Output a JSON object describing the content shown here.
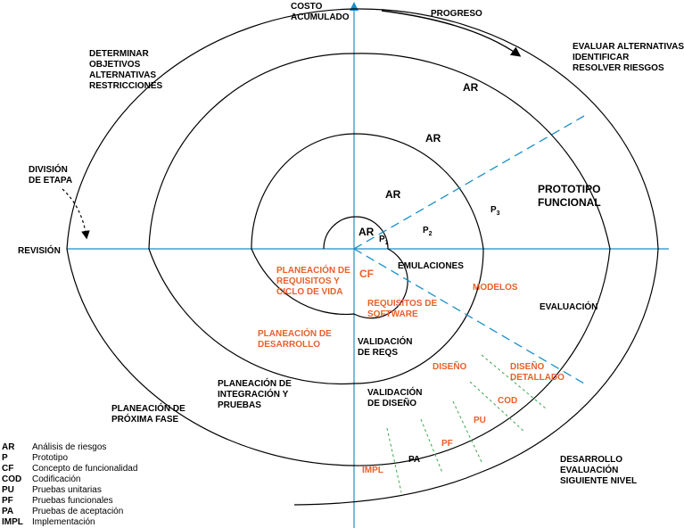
{
  "colors": {
    "axis": "#1a8fc9",
    "orange_text": "#e8602a",
    "green_dash": "#3aa84a",
    "spiral": "#000000"
  },
  "labels": {
    "costo_line1": "COSTO",
    "costo_line2": "ACUMULADO",
    "progreso": "PROGRESO",
    "determinar_1": "DETERMINAR",
    "determinar_2": "OBJETIVOS",
    "determinar_3": "ALTERNATIVAS",
    "determinar_4": "RESTRICCIONES",
    "evaluar_1": "EVALUAR ALTERNATIVAS",
    "evaluar_2": "IDENTIFICAR",
    "evaluar_3": "RESOLVER RIESGOS",
    "division_1": "DIVISIÓN",
    "division_2": "DE ETAPA",
    "revision": "REVISIÓN",
    "ar_outer": "AR",
    "ar_third": "AR",
    "ar_second": "AR",
    "ar_inner": "AR",
    "p1": "P",
    "p1_sub": "1",
    "p2": "P",
    "p2_sub": "2",
    "p3": "P",
    "p3_sub": "3",
    "prototipo_1": "PROTOTIPO",
    "prototipo_2": "FUNCIONAL",
    "emulaciones": "EMULACIONES",
    "modelos": "MODELOS",
    "evaluacion": "EVALUACIÓN",
    "cf": "CF",
    "planeacion_req_1": "PLANEACIÓN DE",
    "planeacion_req_2": "REQUISITOS Y",
    "planeacion_req_3": "CICLO DE VIDA",
    "req_software_1": "REQUISITOS DE",
    "req_software_2": "SOFTWARE",
    "planeacion_des_1": "PLANEACIÓN DE",
    "planeacion_des_2": "DESARROLLO",
    "validacion_req_1": "VALIDACIÓN",
    "validacion_req_2": "DE REQS",
    "diseno": "DISEÑO",
    "diseno_det_1": "DISEÑO",
    "diseno_det_2": "DETALLADO",
    "planeacion_int_1": "PLANEACIÓN DE",
    "planeacion_int_2": "INTEGRACIÓN Y",
    "planeacion_int_3": "PRUEBAS",
    "validacion_dis_1": "VALIDACIÓN",
    "validacion_dis_2": "DE DISEÑO",
    "cod": "COD",
    "pu": "PU",
    "pf": "PF",
    "pa": "PA",
    "impl": "IMPL",
    "planeacion_prox_1": "PLANEACIÓN DE",
    "planeacion_prox_2": "PRÓXIMA FASE",
    "desarrollo_1": "DESARROLLO",
    "desarrollo_2": "EVALUACIÓN",
    "desarrollo_3": "SIGUIENTE NIVEL"
  },
  "legend": [
    {
      "abbr": "AR",
      "desc": "Análisis de riesgos"
    },
    {
      "abbr": "P",
      "desc": "Prototipo"
    },
    {
      "abbr": "CF",
      "desc": "Concepto de funcionalidad"
    },
    {
      "abbr": "COD",
      "desc": "Codificación"
    },
    {
      "abbr": "PU",
      "desc": "Pruebas unitarias"
    },
    {
      "abbr": "PF",
      "desc": "Pruebas funcionales"
    },
    {
      "abbr": "PA",
      "desc": "Pruebas de aceptación"
    },
    {
      "abbr": "IMPL",
      "desc": "Implementación"
    }
  ]
}
